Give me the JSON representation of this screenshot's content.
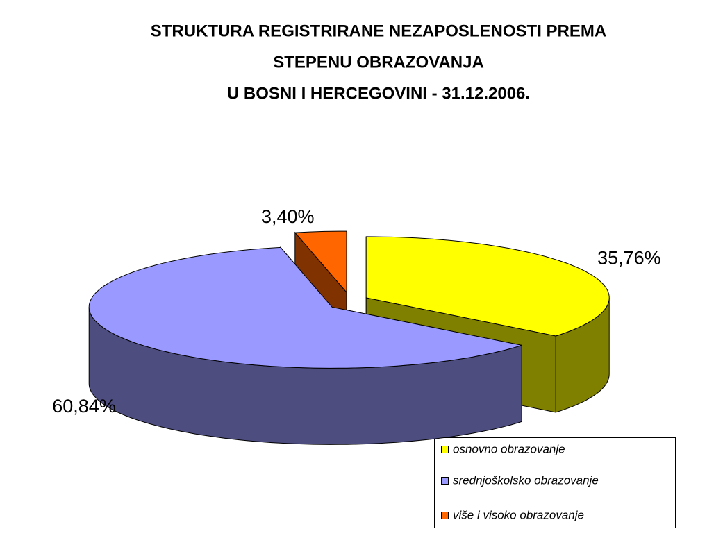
{
  "chart_data": {
    "type": "pie",
    "title": [
      "STRUKTURA REGISTRIRANE NEZAPOSLENOSTI PREMA",
      "STEPENU OBRAZOVANJA",
      "U BOSNI I HERCEGOVINI - 31.12.2006."
    ],
    "categories": [
      "osnovno obrazovanje",
      "srednjoškolsko obrazovanje",
      "više i visoko obrazovanje"
    ],
    "values": [
      35.76,
      60.84,
      3.4
    ],
    "value_labels": [
      "35,76%",
      "60,84%",
      "3,40%"
    ],
    "colors": [
      "#ffff00",
      "#9999ff",
      "#ff6600"
    ],
    "legend": "bottom-right"
  }
}
